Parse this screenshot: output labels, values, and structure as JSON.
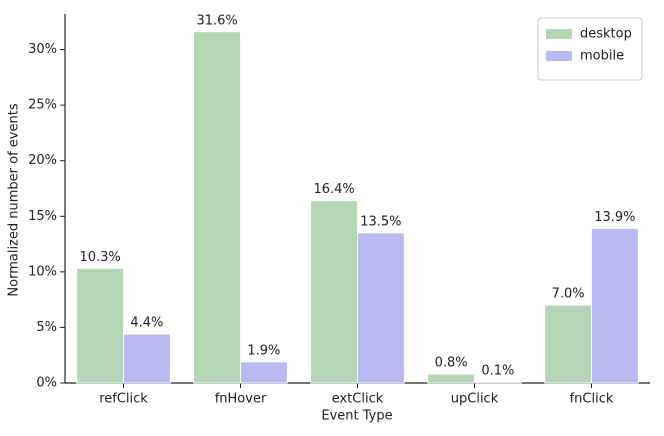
{
  "chart_data": {
    "type": "bar",
    "x_label": "Event Type",
    "y_label": "Normalized number of events",
    "categories": [
      "refClick",
      "fnHover",
      "extClick",
      "upClick",
      "fnClick"
    ],
    "series": [
      {
        "name": "desktop",
        "color": "#b5d6b5",
        "values": [
          10.3,
          31.6,
          16.4,
          0.8,
          7.0
        ],
        "value_labels": [
          "10.3%",
          "31.6%",
          "16.4%",
          "0.8%",
          "7.0%"
        ]
      },
      {
        "name": "mobile",
        "color": "#b9b9f2",
        "values": [
          4.4,
          1.9,
          13.5,
          0.1,
          13.9
        ],
        "value_labels": [
          "4.4%",
          "1.9%",
          "13.5%",
          "0.1%",
          "13.9%"
        ]
      }
    ],
    "ylim": [
      0,
      33.2
    ],
    "yticks": [
      {
        "value": 0,
        "label": "0%"
      },
      {
        "value": 5,
        "label": "5%"
      },
      {
        "value": 10,
        "label": "10%"
      },
      {
        "value": 15,
        "label": "15%"
      },
      {
        "value": 20,
        "label": "20%"
      },
      {
        "value": 25,
        "label": "25%"
      },
      {
        "value": 30,
        "label": "30%"
      }
    ],
    "legend": "upper right"
  }
}
